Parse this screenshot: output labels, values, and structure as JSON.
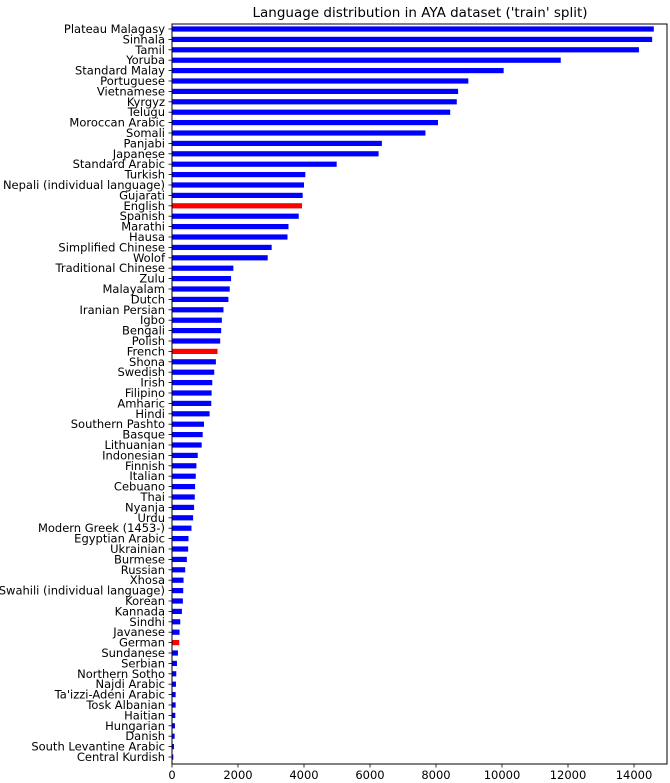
{
  "chart_data": {
    "type": "bar",
    "orientation": "horizontal",
    "title": "Language distribution in AYA dataset ('train' split)",
    "xlabel": "",
    "ylabel": "",
    "xlim": [
      0,
      15000
    ],
    "xticks": [
      0,
      2000,
      4000,
      6000,
      8000,
      10000,
      12000,
      14000
    ],
    "default_color": "#0000ff",
    "highlight_color": "#ff0000",
    "categories": [
      "Plateau Malagasy",
      "Sinhala",
      "Tamil",
      "Yoruba",
      "Standard Malay",
      "Portuguese",
      "Vietnamese",
      "Kyrgyz",
      "Telugu",
      "Moroccan Arabic",
      "Somali",
      "Panjabi",
      "Japanese",
      "Standard Arabic",
      "Turkish",
      "Nepali (individual language)",
      "Gujarati",
      "English",
      "Spanish",
      "Marathi",
      "Hausa",
      "Simplified Chinese",
      "Wolof",
      "Traditional Chinese",
      "Zulu",
      "Malayalam",
      "Dutch",
      "Iranian Persian",
      "Igbo",
      "Bengali",
      "Polish",
      "French",
      "Shona",
      "Swedish",
      "Irish",
      "Filipino",
      "Amharic",
      "Hindi",
      "Southern Pashto",
      "Basque",
      "Lithuanian",
      "Indonesian",
      "Finnish",
      "Italian",
      "Cebuano",
      "Thai",
      "Nyanja",
      "Urdu",
      "Modern Greek (1453-)",
      "Egyptian Arabic",
      "Ukrainian",
      "Burmese",
      "Russian",
      "Xhosa",
      "Swahili (individual language)",
      "Korean",
      "Kannada",
      "Sindhi",
      "Javanese",
      "German",
      "Sundanese",
      "Serbian",
      "Northern Sotho",
      "Najdi Arabic",
      "Ta'izzi-Adeni Arabic",
      "Tosk Albanian",
      "Haitian",
      "Hungarian",
      "Danish",
      "South Levantine Arabic",
      "Central Kurdish"
    ],
    "values": [
      14600,
      14550,
      14150,
      11780,
      10050,
      8980,
      8670,
      8630,
      8430,
      8060,
      7680,
      6360,
      6260,
      4990,
      4040,
      4000,
      3960,
      3940,
      3840,
      3530,
      3500,
      3020,
      2900,
      1860,
      1790,
      1750,
      1710,
      1560,
      1510,
      1490,
      1460,
      1380,
      1330,
      1280,
      1220,
      1200,
      1190,
      1140,
      970,
      930,
      900,
      780,
      740,
      720,
      700,
      690,
      670,
      640,
      590,
      500,
      490,
      450,
      400,
      350,
      340,
      330,
      300,
      250,
      230,
      220,
      180,
      150,
      130,
      120,
      110,
      110,
      100,
      90,
      80,
      60,
      40
    ],
    "highlighted": [
      "English",
      "French",
      "German"
    ]
  }
}
